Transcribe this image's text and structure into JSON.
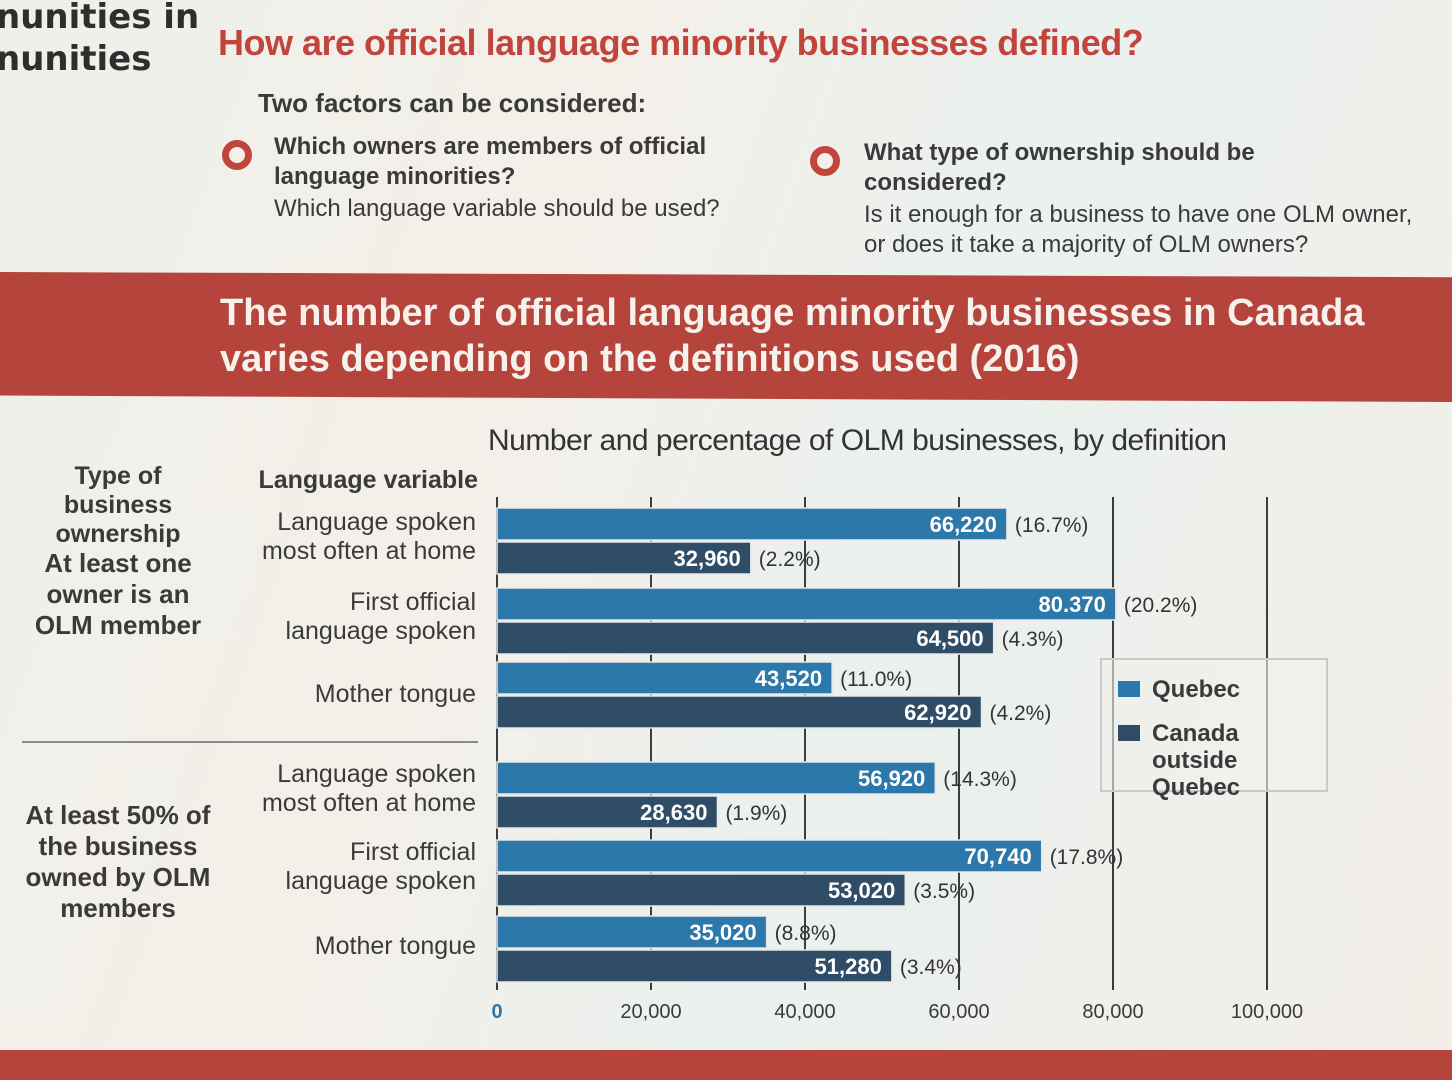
{
  "side_fragments": [
    "nunities in",
    "nunities"
  ],
  "page_title": "How are official language minority businesses defined?",
  "factors_intro": "Two factors can be considered:",
  "factors": [
    {
      "question": "Which owners are members of official language minorities?",
      "detail": "Which language variable should be used?"
    },
    {
      "question": "What type of ownership should be considered?",
      "detail": "Is it enough for a business to have one OLM owner, or does it take a majority of OLM owners?"
    }
  ],
  "banner_title": "The number of official language minority businesses in Canada varies depending on the definitions used (2016)",
  "headers": {
    "ownership": "Type of business ownership",
    "language": "Language variable"
  },
  "groups": [
    "At least one owner is an OLM member",
    "At least 50% of the business owned by OLM members"
  ],
  "colors": {
    "quebec": "#2d78ab",
    "outside": "#2f4d66",
    "accent": "#c2453d"
  },
  "chart_data": {
    "type": "bar",
    "orientation": "horizontal",
    "title": "Number and percentage of OLM businesses, by definition",
    "xlabel": "",
    "ylabel": "",
    "xlim": [
      0,
      100000
    ],
    "x_ticks": [
      "0",
      "20,000",
      "40,000",
      "60,000",
      "80,000",
      "100,000"
    ],
    "x_tick_values": [
      0,
      20000,
      40000,
      60000,
      80000,
      100000
    ],
    "grid": true,
    "legend_position": "right",
    "categories": [
      "Language spoken most often at home",
      "First official language spoken",
      "Mother tongue",
      "Language spoken most often at home",
      "First official language spoken",
      "Mother tongue"
    ],
    "series": [
      {
        "name": "Quebec",
        "values": [
          66220,
          80370,
          43520,
          56920,
          70740,
          35020
        ],
        "labels": [
          "66,220",
          "80.370",
          "43,520",
          "56,920",
          "70,740",
          "35,020"
        ],
        "percent_labels": [
          "(16.7%)",
          "(20.2%)",
          "(11.0%)",
          "(14.3%)",
          "(17.8%)",
          "(8.8%)"
        ]
      },
      {
        "name": "Canada outside Quebec",
        "values": [
          32960,
          64500,
          62920,
          28630,
          53020,
          51280
        ],
        "labels": [
          "32,960",
          "64,500",
          "62,920",
          "28,630",
          "53,020",
          "51,280"
        ],
        "percent_labels": [
          "(2.2%)",
          "(4.3%)",
          "(4.2%)",
          "(1.9%)",
          "(3.5%)",
          "(3.4%)"
        ]
      }
    ]
  }
}
